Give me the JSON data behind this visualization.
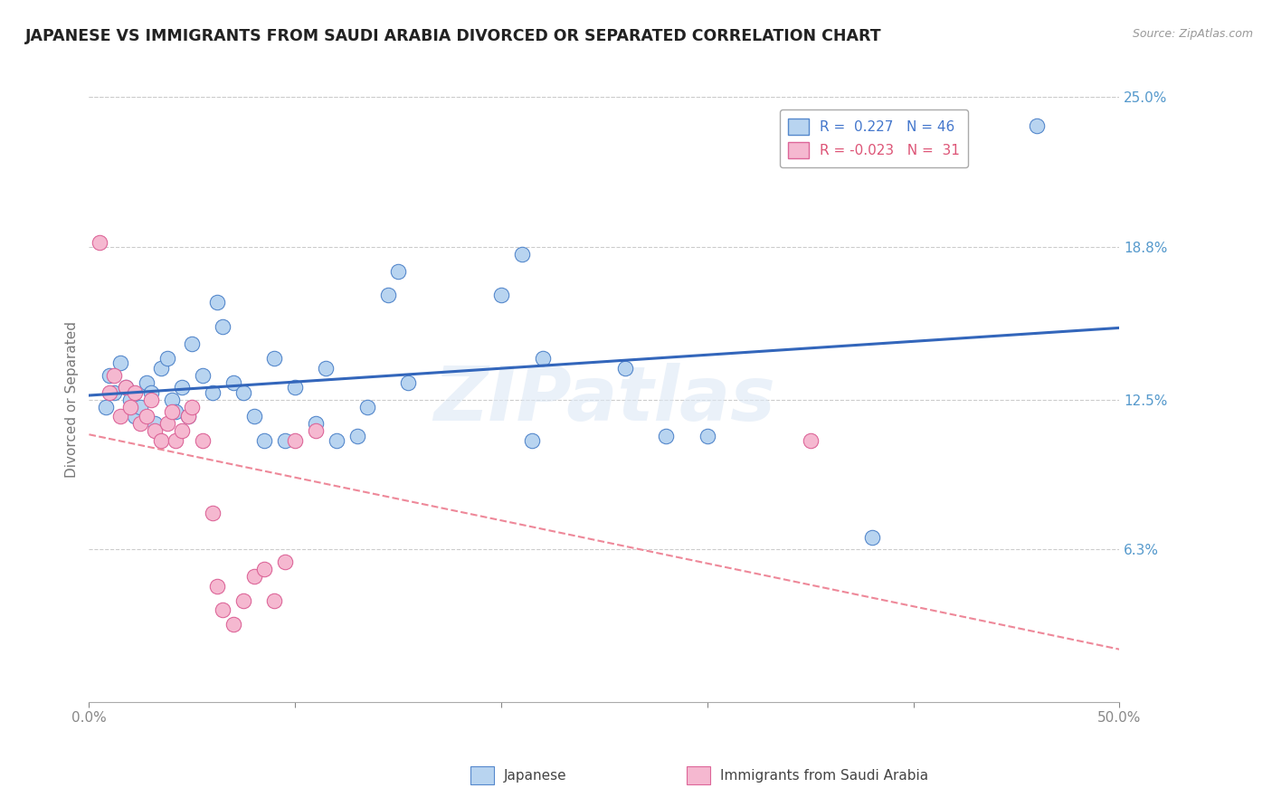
{
  "title": "JAPANESE VS IMMIGRANTS FROM SAUDI ARABIA DIVORCED OR SEPARATED CORRELATION CHART",
  "source_text": "Source: ZipAtlas.com",
  "ylabel": "Divorced or Separated",
  "x_min": 0.0,
  "x_max": 0.5,
  "y_min": 0.0,
  "y_max": 0.25,
  "y_tick_labels_right": [
    "25.0%",
    "18.8%",
    "12.5%",
    "6.3%"
  ],
  "y_tick_vals_right": [
    0.25,
    0.188,
    0.125,
    0.063
  ],
  "japanese_points": [
    [
      0.008,
      0.122
    ],
    [
      0.01,
      0.135
    ],
    [
      0.012,
      0.128
    ],
    [
      0.015,
      0.14
    ],
    [
      0.018,
      0.13
    ],
    [
      0.02,
      0.125
    ],
    [
      0.022,
      0.118
    ],
    [
      0.025,
      0.122
    ],
    [
      0.028,
      0.132
    ],
    [
      0.03,
      0.128
    ],
    [
      0.032,
      0.115
    ],
    [
      0.035,
      0.138
    ],
    [
      0.038,
      0.142
    ],
    [
      0.04,
      0.125
    ],
    [
      0.042,
      0.12
    ],
    [
      0.045,
      0.13
    ],
    [
      0.048,
      0.118
    ],
    [
      0.05,
      0.148
    ],
    [
      0.055,
      0.135
    ],
    [
      0.06,
      0.128
    ],
    [
      0.062,
      0.165
    ],
    [
      0.065,
      0.155
    ],
    [
      0.07,
      0.132
    ],
    [
      0.075,
      0.128
    ],
    [
      0.08,
      0.118
    ],
    [
      0.085,
      0.108
    ],
    [
      0.09,
      0.142
    ],
    [
      0.095,
      0.108
    ],
    [
      0.1,
      0.13
    ],
    [
      0.11,
      0.115
    ],
    [
      0.115,
      0.138
    ],
    [
      0.12,
      0.108
    ],
    [
      0.13,
      0.11
    ],
    [
      0.135,
      0.122
    ],
    [
      0.145,
      0.168
    ],
    [
      0.15,
      0.178
    ],
    [
      0.155,
      0.132
    ],
    [
      0.2,
      0.168
    ],
    [
      0.21,
      0.185
    ],
    [
      0.215,
      0.108
    ],
    [
      0.22,
      0.142
    ],
    [
      0.26,
      0.138
    ],
    [
      0.28,
      0.11
    ],
    [
      0.3,
      0.11
    ],
    [
      0.38,
      0.068
    ],
    [
      0.46,
      0.238
    ]
  ],
  "saudi_points": [
    [
      0.005,
      0.19
    ],
    [
      0.01,
      0.128
    ],
    [
      0.012,
      0.135
    ],
    [
      0.015,
      0.118
    ],
    [
      0.018,
      0.13
    ],
    [
      0.02,
      0.122
    ],
    [
      0.022,
      0.128
    ],
    [
      0.025,
      0.115
    ],
    [
      0.028,
      0.118
    ],
    [
      0.03,
      0.125
    ],
    [
      0.032,
      0.112
    ],
    [
      0.035,
      0.108
    ],
    [
      0.038,
      0.115
    ],
    [
      0.04,
      0.12
    ],
    [
      0.042,
      0.108
    ],
    [
      0.045,
      0.112
    ],
    [
      0.048,
      0.118
    ],
    [
      0.05,
      0.122
    ],
    [
      0.055,
      0.108
    ],
    [
      0.06,
      0.078
    ],
    [
      0.062,
      0.048
    ],
    [
      0.065,
      0.038
    ],
    [
      0.07,
      0.032
    ],
    [
      0.075,
      0.042
    ],
    [
      0.08,
      0.052
    ],
    [
      0.085,
      0.055
    ],
    [
      0.09,
      0.042
    ],
    [
      0.095,
      0.058
    ],
    [
      0.1,
      0.108
    ],
    [
      0.11,
      0.112
    ],
    [
      0.35,
      0.108
    ]
  ],
  "japanese_color": "#b8d4f0",
  "japanese_edge_color": "#5588cc",
  "saudi_color": "#f5b8d0",
  "saudi_edge_color": "#dd6699",
  "trend_japanese_color": "#3366bb",
  "trend_saudi_color": "#ee8899",
  "watermark": "ZIPatlas",
  "background_color": "#ffffff",
  "grid_color": "#cccccc",
  "legend_text1": "R =  0.227   N = 46",
  "legend_text2": "R = -0.023   N =  31",
  "legend_color1": "#4477cc",
  "legend_color2": "#dd5577",
  "bottom_label1": "Japanese",
  "bottom_label2": "Immigrants from Saudi Arabia"
}
